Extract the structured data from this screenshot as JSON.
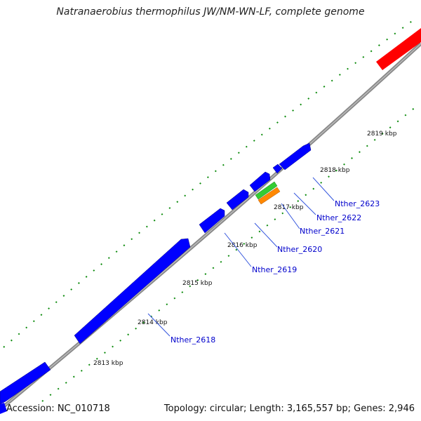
{
  "title": "Natranaerobius thermophilus JW/NM-WN-LF, complete genome",
  "footer": {
    "accession": "Accession: NC_010718",
    "topology": "Topology: circular; Length: 3,165,557 bp; Genes: 2,946"
  },
  "tick_labels": [
    "2813 kbp",
    "2814 kbp",
    "2815 kbp",
    "2816 kbp",
    "2817 kbp",
    "2818 kbp",
    "2819 kbp"
  ],
  "gene_labels": [
    "Nther_2618",
    "Nther_2619",
    "Nther_2620",
    "Nther_2621",
    "Nther_2622",
    "Nther_2623"
  ],
  "colors": {
    "gene_forward": "#0000ff",
    "gene_reverse_red": "#ff0000",
    "gene_green": "#33cc33",
    "gene_orange": "#ff8800",
    "backbone": "#888888",
    "ticks": "#008000",
    "label": "#0000cc"
  }
}
